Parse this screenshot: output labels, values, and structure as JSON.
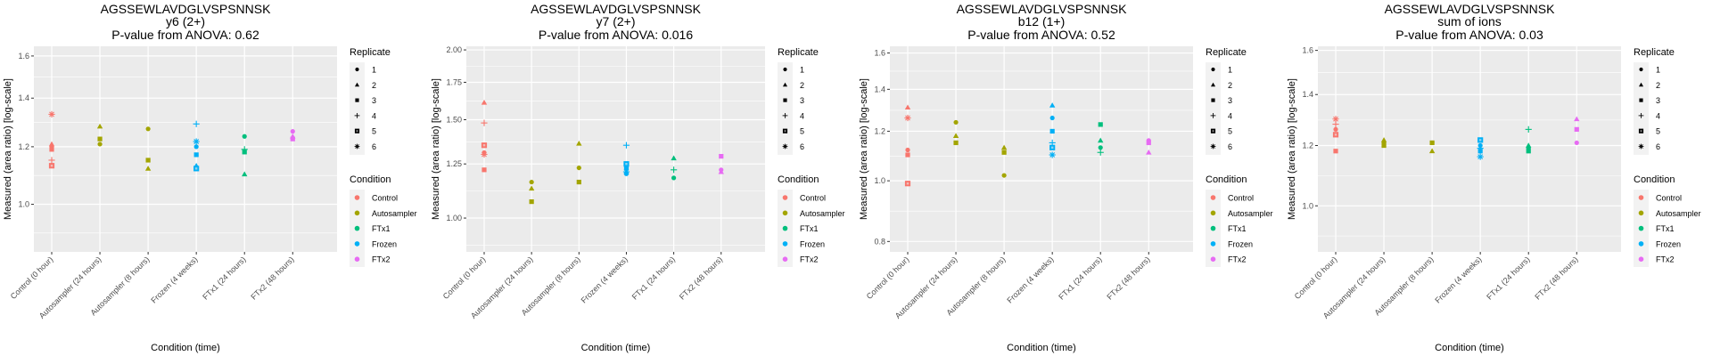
{
  "chart_data": [
    {
      "type": "scatter",
      "title": "AGSSEWLAVDGLVSPSNNSK",
      "subtitle": "y6 (2+)",
      "pvalue_label": "P-value from ANOVA: 0.62",
      "xlabel": "Condition (time)",
      "ylabel": "Measured (area ratio) [log-scale]",
      "yscale": "log",
      "ylim": [
        0.86,
        1.65
      ],
      "yticks": [
        1.0,
        1.2,
        1.4,
        1.6
      ],
      "ytick_labels": [
        "1.0",
        "1.2",
        "1.4",
        "1.6"
      ],
      "grid": true,
      "categories": [
        "Control (0 hour)",
        "Autosampler (24 hours)",
        "Autosampler (8 hours)",
        "Frozen (4 weeks)",
        "FTx1 (24 hours)",
        "FTx2 (48 hours)"
      ],
      "points": [
        {
          "x": 0,
          "y": 1.33,
          "replicate": 6,
          "condition": "Control"
        },
        {
          "x": 0,
          "y": 1.21,
          "replicate": 2,
          "condition": "Control"
        },
        {
          "x": 0,
          "y": 1.2,
          "replicate": 1,
          "condition": "Control"
        },
        {
          "x": 0,
          "y": 1.19,
          "replicate": 3,
          "condition": "Control"
        },
        {
          "x": 0,
          "y": 1.15,
          "replicate": 4,
          "condition": "Control"
        },
        {
          "x": 0,
          "y": 1.13,
          "replicate": 5,
          "condition": "Control"
        },
        {
          "x": 1,
          "y": 1.28,
          "replicate": 2,
          "condition": "Autosampler"
        },
        {
          "x": 1,
          "y": 1.23,
          "replicate": 3,
          "condition": "Autosampler"
        },
        {
          "x": 1,
          "y": 1.21,
          "replicate": 1,
          "condition": "Autosampler"
        },
        {
          "x": 2,
          "y": 1.27,
          "replicate": 1,
          "condition": "Autosampler"
        },
        {
          "x": 2,
          "y": 1.15,
          "replicate": 3,
          "condition": "Autosampler"
        },
        {
          "x": 2,
          "y": 1.12,
          "replicate": 2,
          "condition": "Autosampler"
        },
        {
          "x": 3,
          "y": 1.29,
          "replicate": 4,
          "condition": "Frozen"
        },
        {
          "x": 3,
          "y": 1.22,
          "replicate": 6,
          "condition": "Frozen"
        },
        {
          "x": 3,
          "y": 1.2,
          "replicate": 1,
          "condition": "Frozen"
        },
        {
          "x": 3,
          "y": 1.17,
          "replicate": 3,
          "condition": "Frozen"
        },
        {
          "x": 3,
          "y": 1.13,
          "replicate": 2,
          "condition": "Frozen"
        },
        {
          "x": 3,
          "y": 1.12,
          "replicate": 5,
          "condition": "Frozen"
        },
        {
          "x": 4,
          "y": 1.24,
          "replicate": 1,
          "condition": "FTx1"
        },
        {
          "x": 4,
          "y": 1.19,
          "replicate": 4,
          "condition": "FTx1"
        },
        {
          "x": 4,
          "y": 1.18,
          "replicate": 3,
          "condition": "FTx1"
        },
        {
          "x": 4,
          "y": 1.1,
          "replicate": 2,
          "condition": "FTx1"
        },
        {
          "x": 5,
          "y": 1.26,
          "replicate": 1,
          "condition": "FTx2"
        },
        {
          "x": 5,
          "y": 1.24,
          "replicate": 2,
          "condition": "FTx2"
        },
        {
          "x": 5,
          "y": 1.23,
          "replicate": 3,
          "condition": "FTx2"
        }
      ]
    },
    {
      "type": "scatter",
      "title": "AGSSEWLAVDGLVSPSNNSK",
      "subtitle": "y7 (2+)",
      "pvalue_label": "P-value from ANOVA: 0.016",
      "xlabel": "Condition (time)",
      "ylabel": "Measured (area ratio) [log-scale]",
      "yscale": "log",
      "ylim": [
        0.87,
        2.03
      ],
      "yticks": [
        1.0,
        1.25,
        1.5,
        1.75,
        2.0
      ],
      "ytick_labels": [
        "1.00",
        "1.25",
        "1.50",
        "1.75",
        "2.00"
      ],
      "grid": true,
      "categories": [
        "Control (0 hour)",
        "Autosampler (24 hours)",
        "Autosampler (8 hours)",
        "Frozen (4 weeks)",
        "FTx1 (24 hours)",
        "FTx2 (48 hours)"
      ],
      "points": [
        {
          "x": 0,
          "y": 1.61,
          "replicate": 2,
          "condition": "Control"
        },
        {
          "x": 0,
          "y": 1.48,
          "replicate": 4,
          "condition": "Control"
        },
        {
          "x": 0,
          "y": 1.35,
          "replicate": 5,
          "condition": "Control"
        },
        {
          "x": 0,
          "y": 1.31,
          "replicate": 1,
          "condition": "Control"
        },
        {
          "x": 0,
          "y": 1.3,
          "replicate": 6,
          "condition": "Control"
        },
        {
          "x": 0,
          "y": 1.22,
          "replicate": 3,
          "condition": "Control"
        },
        {
          "x": 1,
          "y": 1.16,
          "replicate": 1,
          "condition": "Autosampler"
        },
        {
          "x": 1,
          "y": 1.13,
          "replicate": 2,
          "condition": "Autosampler"
        },
        {
          "x": 1,
          "y": 1.07,
          "replicate": 3,
          "condition": "Autosampler"
        },
        {
          "x": 2,
          "y": 1.36,
          "replicate": 2,
          "condition": "Autosampler"
        },
        {
          "x": 2,
          "y": 1.23,
          "replicate": 1,
          "condition": "Autosampler"
        },
        {
          "x": 2,
          "y": 1.16,
          "replicate": 3,
          "condition": "Autosampler"
        },
        {
          "x": 3,
          "y": 1.35,
          "replicate": 4,
          "condition": "Frozen"
        },
        {
          "x": 3,
          "y": 1.25,
          "replicate": 5,
          "condition": "Frozen"
        },
        {
          "x": 3,
          "y": 1.23,
          "replicate": 3,
          "condition": "Frozen"
        },
        {
          "x": 3,
          "y": 1.21,
          "replicate": 2,
          "condition": "Frozen"
        },
        {
          "x": 3,
          "y": 1.2,
          "replicate": 1,
          "condition": "Frozen"
        },
        {
          "x": 3,
          "y": 1.21,
          "replicate": 6,
          "condition": "Frozen"
        },
        {
          "x": 4,
          "y": 1.28,
          "replicate": 2,
          "condition": "FTx1"
        },
        {
          "x": 4,
          "y": 1.22,
          "replicate": 4,
          "condition": "FTx1"
        },
        {
          "x": 4,
          "y": 1.18,
          "replicate": 1,
          "condition": "FTx1"
        },
        {
          "x": 5,
          "y": 1.29,
          "replicate": 3,
          "condition": "FTx2"
        },
        {
          "x": 5,
          "y": 1.22,
          "replicate": 1,
          "condition": "FTx2"
        },
        {
          "x": 5,
          "y": 1.21,
          "replicate": 2,
          "condition": "FTx2"
        }
      ]
    },
    {
      "type": "scatter",
      "title": "AGSSEWLAVDGLVSPSNNSK",
      "subtitle": "b12 (1+)",
      "pvalue_label": "P-value from ANOVA: 0.52",
      "xlabel": "Condition (time)",
      "ylabel": "Measured (area ratio) [log-scale]",
      "yscale": "log",
      "ylim": [
        0.77,
        1.64
      ],
      "yticks": [
        0.8,
        1.0,
        1.2,
        1.4,
        1.6
      ],
      "ytick_labels": [
        "0.8",
        "1.0",
        "1.2",
        "1.4",
        "1.6"
      ],
      "grid": true,
      "categories": [
        "Control (0 hour)",
        "Autosampler (24 hours)",
        "Autosampler (8 hours)",
        "Frozen (4 weeks)",
        "FTx1 (24 hours)",
        "FTx2 (48 hours)"
      ],
      "points": [
        {
          "x": 0,
          "y": 1.31,
          "replicate": 2,
          "condition": "Control"
        },
        {
          "x": 0,
          "y": 1.26,
          "replicate": 6,
          "condition": "Control"
        },
        {
          "x": 0,
          "y": 1.12,
          "replicate": 1,
          "condition": "Control"
        },
        {
          "x": 0,
          "y": 1.1,
          "replicate": 3,
          "condition": "Control"
        },
        {
          "x": 0,
          "y": 0.99,
          "replicate": 5,
          "condition": "Control"
        },
        {
          "x": 1,
          "y": 1.24,
          "replicate": 1,
          "condition": "Autosampler"
        },
        {
          "x": 1,
          "y": 1.18,
          "replicate": 2,
          "condition": "Autosampler"
        },
        {
          "x": 1,
          "y": 1.15,
          "replicate": 3,
          "condition": "Autosampler"
        },
        {
          "x": 2,
          "y": 1.13,
          "replicate": 2,
          "condition": "Autosampler"
        },
        {
          "x": 2,
          "y": 1.11,
          "replicate": 3,
          "condition": "Autosampler"
        },
        {
          "x": 2,
          "y": 1.02,
          "replicate": 1,
          "condition": "Autosampler"
        },
        {
          "x": 3,
          "y": 1.32,
          "replicate": 2,
          "condition": "Frozen"
        },
        {
          "x": 3,
          "y": 1.26,
          "replicate": 1,
          "condition": "Frozen"
        },
        {
          "x": 3,
          "y": 1.2,
          "replicate": 3,
          "condition": "Frozen"
        },
        {
          "x": 3,
          "y": 1.15,
          "replicate": 4,
          "condition": "Frozen"
        },
        {
          "x": 3,
          "y": 1.13,
          "replicate": 5,
          "condition": "Frozen"
        },
        {
          "x": 3,
          "y": 1.1,
          "replicate": 6,
          "condition": "Frozen"
        },
        {
          "x": 4,
          "y": 1.23,
          "replicate": 3,
          "condition": "FTx1"
        },
        {
          "x": 4,
          "y": 1.16,
          "replicate": 2,
          "condition": "FTx1"
        },
        {
          "x": 4,
          "y": 1.13,
          "replicate": 1,
          "condition": "FTx1"
        },
        {
          "x": 4,
          "y": 1.11,
          "replicate": 4,
          "condition": "FTx1"
        },
        {
          "x": 5,
          "y": 1.16,
          "replicate": 1,
          "condition": "FTx2"
        },
        {
          "x": 5,
          "y": 1.15,
          "replicate": 3,
          "condition": "FTx2"
        },
        {
          "x": 5,
          "y": 1.11,
          "replicate": 2,
          "condition": "FTx2"
        }
      ]
    },
    {
      "type": "scatter",
      "title": "AGSSEWLAVDGLVSPSNNSK",
      "subtitle": "sum of ions",
      "pvalue_label": "P-value from ANOVA: 0.03",
      "xlabel": "Condition (time)",
      "ylabel": "Measured (area ratio) [log-scale]",
      "yscale": "log",
      "ylim": [
        0.87,
        1.62
      ],
      "yticks": [
        1.0,
        1.2,
        1.4,
        1.6
      ],
      "ytick_labels": [
        "1.0",
        "1.2",
        "1.4",
        "1.6"
      ],
      "grid": true,
      "categories": [
        "Control (0 hour)",
        "Autosampler (24 hours)",
        "Autosampler (8 hours)",
        "Frozen (4 weeks)",
        "FTx1 (24 hours)",
        "FTx2 (48 hours)"
      ],
      "points": [
        {
          "x": 0,
          "y": 1.3,
          "replicate": 6,
          "condition": "Control"
        },
        {
          "x": 0,
          "y": 1.28,
          "replicate": 4,
          "condition": "Control"
        },
        {
          "x": 0,
          "y": 1.26,
          "replicate": 1,
          "condition": "Control"
        },
        {
          "x": 0,
          "y": 1.24,
          "replicate": 5,
          "condition": "Control"
        },
        {
          "x": 0,
          "y": 1.18,
          "replicate": 3,
          "condition": "Control"
        },
        {
          "x": 1,
          "y": 1.22,
          "replicate": 2,
          "condition": "Autosampler"
        },
        {
          "x": 1,
          "y": 1.21,
          "replicate": 1,
          "condition": "Autosampler"
        },
        {
          "x": 1,
          "y": 1.2,
          "replicate": 3,
          "condition": "Autosampler"
        },
        {
          "x": 2,
          "y": 1.21,
          "replicate": 1,
          "condition": "Autosampler"
        },
        {
          "x": 2,
          "y": 1.21,
          "replicate": 3,
          "condition": "Autosampler"
        },
        {
          "x": 2,
          "y": 1.18,
          "replicate": 2,
          "condition": "Autosampler"
        },
        {
          "x": 3,
          "y": 1.22,
          "replicate": 5,
          "condition": "Frozen"
        },
        {
          "x": 3,
          "y": 1.2,
          "replicate": 1,
          "condition": "Frozen"
        },
        {
          "x": 3,
          "y": 1.19,
          "replicate": 4,
          "condition": "Frozen"
        },
        {
          "x": 3,
          "y": 1.18,
          "replicate": 3,
          "condition": "Frozen"
        },
        {
          "x": 3,
          "y": 1.16,
          "replicate": 6,
          "condition": "Frozen"
        },
        {
          "x": 4,
          "y": 1.26,
          "replicate": 4,
          "condition": "FTx1"
        },
        {
          "x": 4,
          "y": 1.2,
          "replicate": 2,
          "condition": "FTx1"
        },
        {
          "x": 4,
          "y": 1.19,
          "replicate": 1,
          "condition": "FTx1"
        },
        {
          "x": 4,
          "y": 1.18,
          "replicate": 3,
          "condition": "FTx1"
        },
        {
          "x": 5,
          "y": 1.3,
          "replicate": 2,
          "condition": "FTx2"
        },
        {
          "x": 5,
          "y": 1.26,
          "replicate": 3,
          "condition": "FTx2"
        },
        {
          "x": 5,
          "y": 1.21,
          "replicate": 1,
          "condition": "FTx2"
        }
      ]
    }
  ],
  "legend": {
    "placement": "right",
    "replicate_title": "Replicate",
    "replicates": [
      {
        "label": "1",
        "shape": "circle"
      },
      {
        "label": "2",
        "shape": "triangle"
      },
      {
        "label": "3",
        "shape": "square"
      },
      {
        "label": "4",
        "shape": "plus"
      },
      {
        "label": "5",
        "shape": "boxed-square"
      },
      {
        "label": "6",
        "shape": "asterisk"
      }
    ],
    "condition_title": "Condition",
    "conditions": [
      {
        "label": "Control",
        "color": "#F8766D"
      },
      {
        "label": "Autosampler",
        "color": "#A3A500"
      },
      {
        "label": "FTx1",
        "color": "#00BF7D"
      },
      {
        "label": "Frozen",
        "color": "#00B0F6"
      },
      {
        "label": "FTx2",
        "color": "#E76BF3"
      }
    ]
  }
}
